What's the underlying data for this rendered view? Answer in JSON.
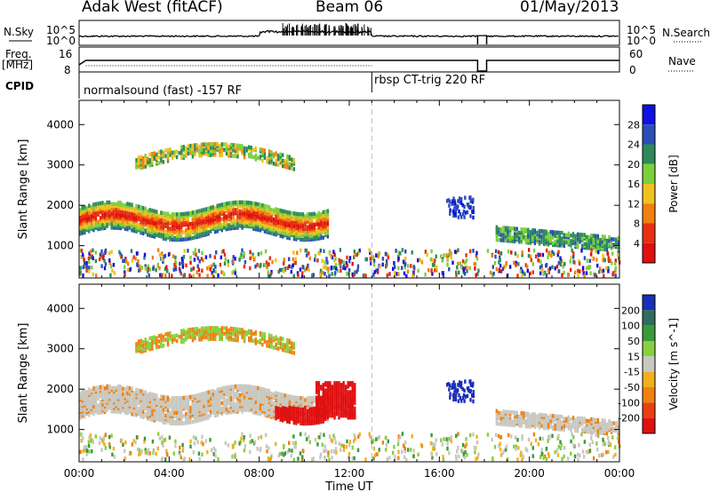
{
  "header": {
    "radar": "Adak West (fitACF)",
    "beam": "Beam 06",
    "date": "01/May/2013"
  },
  "left_labels": {
    "nsky": "N.Sky",
    "freq": "Freq.",
    "freq_unit": "[MHz]",
    "cpid": "CPID"
  },
  "right_labels": {
    "nsearch": "N.Search",
    "nave": "Nave"
  },
  "noise_panel": {
    "left_ticks": [
      "10^5",
      "10^0"
    ],
    "right_ticks": [
      "10^5",
      "10^0"
    ]
  },
  "freq_panel": {
    "left_ticks": [
      "16",
      "8"
    ],
    "right_ticks": [
      "60",
      "0"
    ]
  },
  "cpid_panel": {
    "mode_1": "normalsound (fast) -157 RF",
    "mode_2": "rbsp CT-trig 220 RF"
  },
  "chart_data": [
    {
      "type": "heatmap",
      "name": "power-panel",
      "ylabel": "Slant Range [km]",
      "yticks": [
        1000,
        2000,
        3000,
        4000
      ],
      "ylim": [
        200,
        4600
      ],
      "xlim_hours": [
        0,
        24
      ],
      "colorbar": {
        "label": "Power [dB]",
        "ticks": [
          "4",
          "8",
          "12",
          "16",
          "20",
          "24",
          "28"
        ],
        "colors": [
          "#1010e0",
          "#2a4fb8",
          "#2e8a5a",
          "#7ccf3c",
          "#f0c020",
          "#f08010",
          "#e83010",
          "#e01010"
        ]
      }
    },
    {
      "type": "heatmap",
      "name": "velocity-panel",
      "ylabel": "Slant Range [km]",
      "yticks": [
        1000,
        2000,
        3000,
        4000
      ],
      "ylim": [
        200,
        4600
      ],
      "xlim_hours": [
        0,
        24
      ],
      "colorbar": {
        "label": "Velocity [m s^-1]",
        "ticks": [
          "200",
          "100",
          "50",
          "15",
          "-15",
          "-50",
          "-100",
          "-200"
        ],
        "colors": [
          "#1a2fb8",
          "#2e6e5a",
          "#3a9a3a",
          "#88d040",
          "#c8c8c0",
          "#f0b020",
          "#f08010",
          "#e84010",
          "#e01010"
        ]
      }
    }
  ],
  "xaxis": {
    "ticks": [
      "00:00",
      "04:00",
      "08:00",
      "12:00",
      "16:00",
      "20:00",
      "00:00"
    ],
    "label": "Time UT"
  }
}
